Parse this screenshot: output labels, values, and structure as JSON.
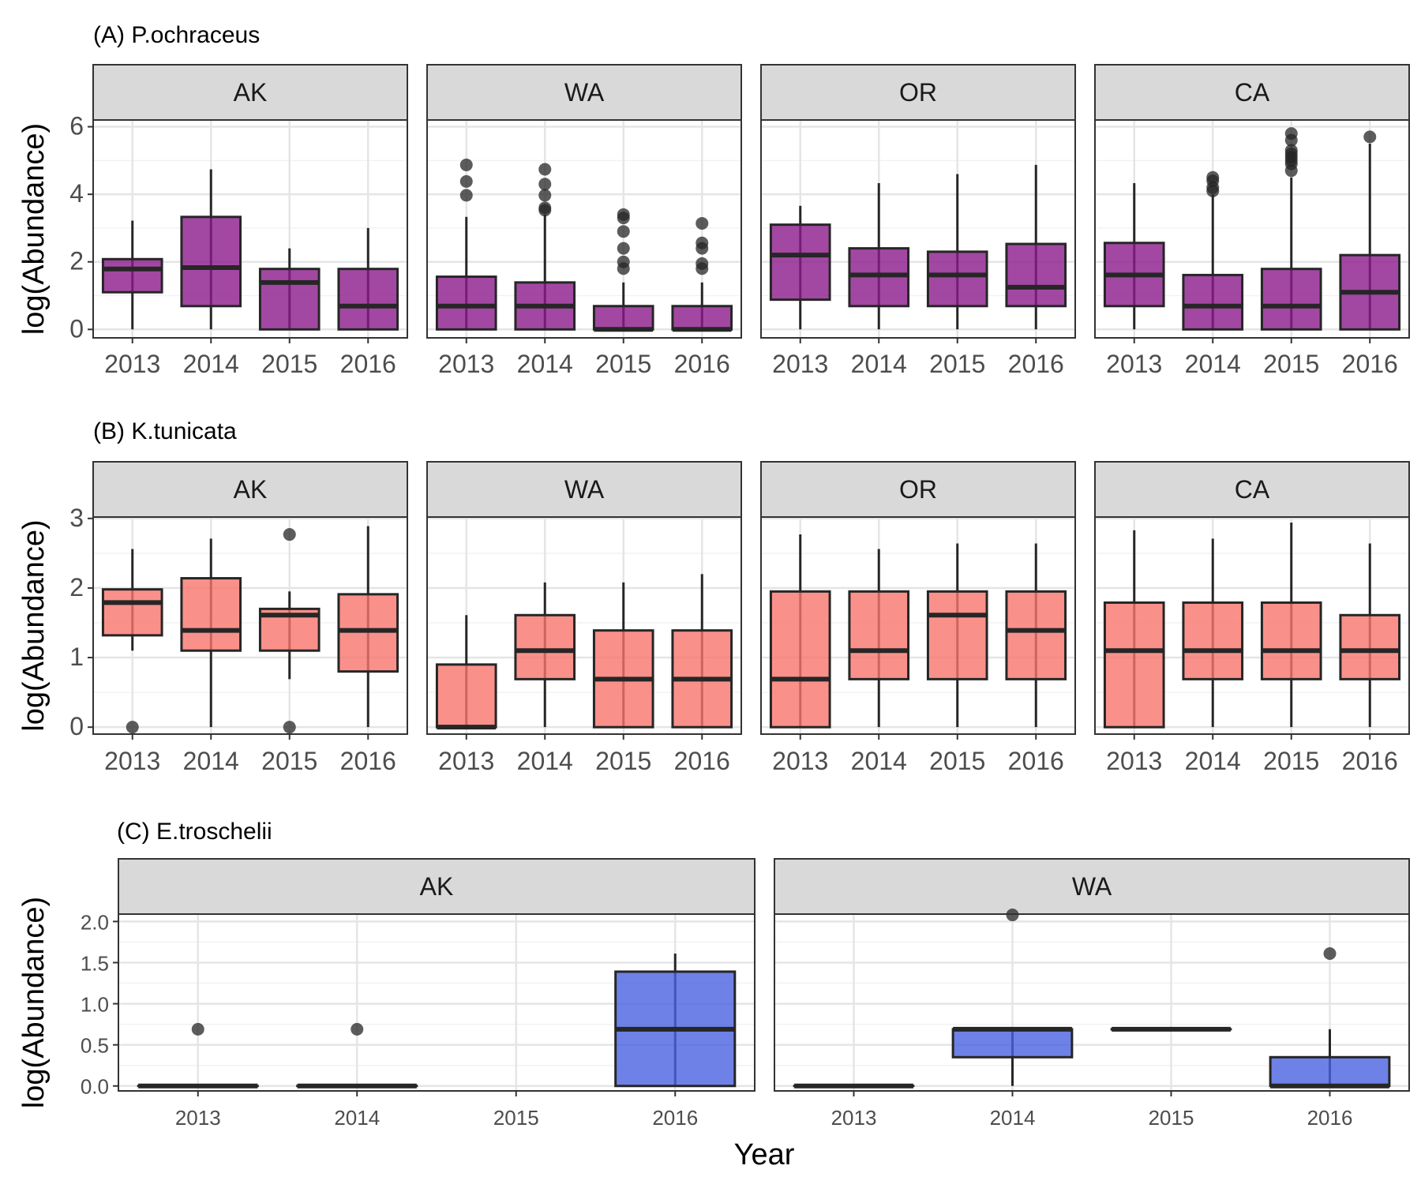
{
  "chart_data": [
    {
      "type": "box",
      "title": "(A) P.ochraceus",
      "xlabel": "",
      "ylabel": "log(Abundance)",
      "ylim": [
        -0.25,
        6.2
      ],
      "yticks": [
        "0",
        "2",
        "4",
        "6"
      ],
      "categories": [
        "2013",
        "2014",
        "2015",
        "2016"
      ],
      "fill_color": "#8B1A8B",
      "panels": [
        {
          "name": "AK",
          "boxes": [
            {
              "x": "2013",
              "min": 0,
              "q1": 1.1,
              "median": 1.79,
              "q3": 2.08,
              "max": 3.22,
              "outliers": []
            },
            {
              "x": "2014",
              "min": 0,
              "q1": 0.69,
              "median": 1.83,
              "q3": 3.33,
              "max": 4.74,
              "outliers": []
            },
            {
              "x": "2015",
              "min": 0,
              "q1": 0,
              "median": 1.39,
              "q3": 1.79,
              "max": 2.4,
              "outliers": []
            },
            {
              "x": "2016",
              "min": 0,
              "q1": 0,
              "median": 0.69,
              "q3": 1.79,
              "max": 3.0,
              "outliers": []
            }
          ]
        },
        {
          "name": "WA",
          "boxes": [
            {
              "x": "2013",
              "min": 0,
              "q1": 0,
              "median": 0.69,
              "q3": 1.56,
              "max": 3.33,
              "outliers": [
                4.87,
                4.38,
                3.97
              ]
            },
            {
              "x": "2014",
              "min": 0,
              "q1": 0,
              "median": 0.69,
              "q3": 1.39,
              "max": 3.4,
              "outliers": [
                4.74,
                4.3,
                3.97,
                3.6,
                3.53
              ]
            },
            {
              "x": "2015",
              "min": 0,
              "q1": 0,
              "median": 0,
              "q3": 0.69,
              "max": 1.39,
              "outliers": [
                3.4,
                3.3,
                2.9,
                2.4,
                2.0,
                1.8
              ]
            },
            {
              "x": "2016",
              "min": 0,
              "q1": 0,
              "median": 0,
              "q3": 0.69,
              "max": 1.39,
              "outliers": [
                3.14,
                2.56,
                2.4,
                1.95,
                1.8
              ]
            }
          ]
        },
        {
          "name": "OR",
          "boxes": [
            {
              "x": "2013",
              "min": 0,
              "q1": 0.88,
              "median": 2.2,
              "q3": 3.1,
              "max": 3.66,
              "outliers": []
            },
            {
              "x": "2014",
              "min": 0,
              "q1": 0.69,
              "median": 1.61,
              "q3": 2.4,
              "max": 4.33,
              "outliers": []
            },
            {
              "x": "2015",
              "min": 0,
              "q1": 0.69,
              "median": 1.61,
              "q3": 2.3,
              "max": 4.6,
              "outliers": []
            },
            {
              "x": "2016",
              "min": 0,
              "q1": 0.69,
              "median": 1.25,
              "q3": 2.53,
              "max": 4.87,
              "outliers": []
            }
          ]
        },
        {
          "name": "CA",
          "boxes": [
            {
              "x": "2013",
              "min": 0,
              "q1": 0.69,
              "median": 1.61,
              "q3": 2.56,
              "max": 4.33,
              "outliers": []
            },
            {
              "x": "2014",
              "min": 0,
              "q1": 0,
              "median": 0.69,
              "q3": 1.61,
              "max": 4.0,
              "outliers": [
                4.5,
                4.4,
                4.2,
                4.1
              ]
            },
            {
              "x": "2015",
              "min": 0,
              "q1": 0,
              "median": 0.69,
              "q3": 1.79,
              "max": 4.5,
              "outliers": [
                5.8,
                5.6,
                5.3,
                5.2,
                5.1,
                5.0,
                4.9,
                4.7
              ]
            },
            {
              "x": "2016",
              "min": 0,
              "q1": 0,
              "median": 1.1,
              "q3": 2.2,
              "max": 5.5,
              "outliers": [
                5.7
              ]
            }
          ]
        }
      ]
    },
    {
      "type": "box",
      "title": "(B) K.tunicata",
      "xlabel": "",
      "ylabel": "log(Abundance)",
      "ylim": [
        -0.1,
        3.02
      ],
      "yticks": [
        "0",
        "1",
        "2",
        "3"
      ],
      "categories": [
        "2013",
        "2014",
        "2015",
        "2016"
      ],
      "fill_color": "#F8766D",
      "panels": [
        {
          "name": "AK",
          "boxes": [
            {
              "x": "2013",
              "min": 1.1,
              "q1": 1.32,
              "median": 1.79,
              "q3": 1.98,
              "max": 2.56,
              "outliers": [
                0
              ]
            },
            {
              "x": "2014",
              "min": 0,
              "q1": 1.1,
              "median": 1.39,
              "q3": 2.14,
              "max": 2.71,
              "outliers": []
            },
            {
              "x": "2015",
              "min": 0.69,
              "q1": 1.1,
              "median": 1.61,
              "q3": 1.7,
              "max": 1.95,
              "outliers": [
                2.77,
                0
              ]
            },
            {
              "x": "2016",
              "min": 0,
              "q1": 0.8,
              "median": 1.39,
              "q3": 1.91,
              "max": 2.89,
              "outliers": []
            }
          ]
        },
        {
          "name": "WA",
          "boxes": [
            {
              "x": "2013",
              "min": 0,
              "q1": 0,
              "median": 0,
              "q3": 0.9,
              "max": 1.61,
              "outliers": []
            },
            {
              "x": "2014",
              "min": 0,
              "q1": 0.69,
              "median": 1.1,
              "q3": 1.61,
              "max": 2.08,
              "outliers": []
            },
            {
              "x": "2015",
              "min": 0,
              "q1": 0,
              "median": 0.69,
              "q3": 1.39,
              "max": 2.08,
              "outliers": []
            },
            {
              "x": "2016",
              "min": 0,
              "q1": 0,
              "median": 0.69,
              "q3": 1.39,
              "max": 2.2,
              "outliers": []
            }
          ]
        },
        {
          "name": "OR",
          "boxes": [
            {
              "x": "2013",
              "min": 0,
              "q1": 0,
              "median": 0.69,
              "q3": 1.95,
              "max": 2.77,
              "outliers": []
            },
            {
              "x": "2014",
              "min": 0,
              "q1": 0.69,
              "median": 1.1,
              "q3": 1.95,
              "max": 2.56,
              "outliers": []
            },
            {
              "x": "2015",
              "min": 0,
              "q1": 0.69,
              "median": 1.61,
              "q3": 1.95,
              "max": 2.64,
              "outliers": []
            },
            {
              "x": "2016",
              "min": 0,
              "q1": 0.69,
              "median": 1.39,
              "q3": 1.95,
              "max": 2.64,
              "outliers": []
            }
          ]
        },
        {
          "name": "CA",
          "boxes": [
            {
              "x": "2013",
              "min": 0,
              "q1": 0,
              "median": 1.1,
              "q3": 1.79,
              "max": 2.83,
              "outliers": []
            },
            {
              "x": "2014",
              "min": 0,
              "q1": 0.69,
              "median": 1.1,
              "q3": 1.79,
              "max": 2.71,
              "outliers": []
            },
            {
              "x": "2015",
              "min": 0,
              "q1": 0.69,
              "median": 1.1,
              "q3": 1.79,
              "max": 2.94,
              "outliers": []
            },
            {
              "x": "2016",
              "min": 0,
              "q1": 0.69,
              "median": 1.1,
              "q3": 1.61,
              "max": 2.64,
              "outliers": []
            }
          ]
        }
      ]
    },
    {
      "type": "box",
      "title": "(C) E.troschelii",
      "xlabel": "Year",
      "ylabel": "log(Abundance)",
      "ylim": [
        -0.06,
        2.09
      ],
      "yticks": [
        "0.0",
        "0.5",
        "1.0",
        "1.5",
        "2.0"
      ],
      "categories": [
        "2013",
        "2014",
        "2015",
        "2016"
      ],
      "fill_color": "#4A62E0",
      "panels": [
        {
          "name": "AK",
          "boxes": [
            {
              "x": "2013",
              "min": 0,
              "q1": 0,
              "median": 0,
              "q3": 0,
              "max": 0,
              "outliers": [
                0.69
              ]
            },
            {
              "x": "2014",
              "min": 0,
              "q1": 0,
              "median": 0,
              "q3": 0,
              "max": 0,
              "outliers": [
                0.69
              ]
            },
            {
              "x": "2016",
              "min": 0,
              "q1": 0,
              "median": 0.69,
              "q3": 1.39,
              "max": 1.61,
              "outliers": []
            }
          ]
        },
        {
          "name": "WA",
          "boxes": [
            {
              "x": "2013",
              "min": 0,
              "q1": 0,
              "median": 0,
              "q3": 0,
              "max": 0,
              "outliers": []
            },
            {
              "x": "2014",
              "min": 0,
              "q1": 0.35,
              "median": 0.69,
              "q3": 0.69,
              "max": 0.69,
              "outliers": [
                2.08
              ]
            },
            {
              "x": "2015",
              "min": 0.69,
              "q1": 0.69,
              "median": 0.69,
              "q3": 0.69,
              "max": 0.69,
              "outliers": []
            },
            {
              "x": "2016",
              "min": 0,
              "q1": 0,
              "median": 0,
              "q3": 0.35,
              "max": 0.69,
              "outliers": [
                1.61
              ]
            }
          ]
        }
      ]
    }
  ]
}
